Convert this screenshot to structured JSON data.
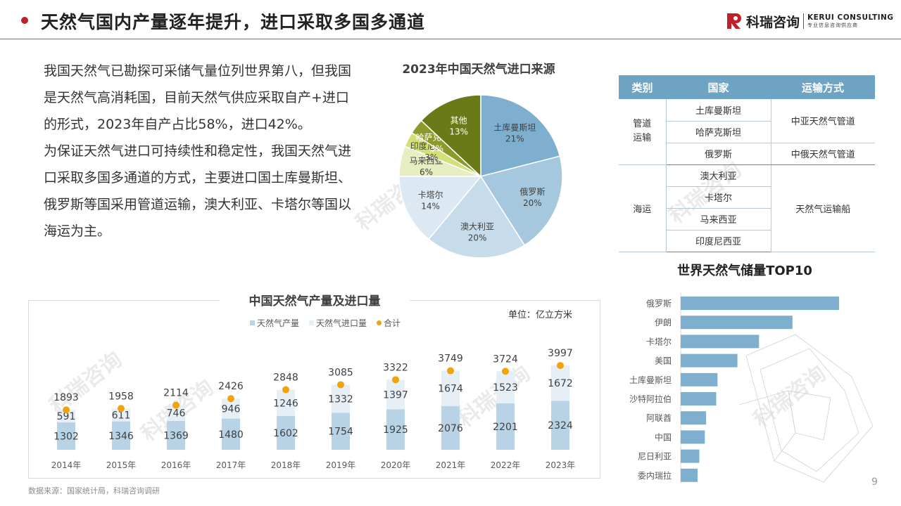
{
  "header": {
    "title": "天然气国内产量逐年提升，进口采取多国多通道",
    "logo_cn": "科瑞咨询",
    "logo_en": "KERUI CONSULTING",
    "logo_sub": "专业信息咨询供应商"
  },
  "paragraphs": [
    "我国天然气已勘探可采储气量位列世界第八，但我国是天然气高消耗国，目前天然气供应采取自产+进口的形式，2023年自产占比58%，进口42%。",
    "为保证天然气进口可持续性和稳定性，我国天然气进口采取多国多通道的方式，主要进口国土库曼斯坦、俄罗斯等国采用管道运输，澳大利亚、卡塔尔等国以海运为主。"
  ],
  "watermark": "科瑞咨询",
  "chart_data": [
    {
      "type": "pie",
      "title": "2023年中国天然气进口来源",
      "slices": [
        {
          "label": "土库曼斯坦",
          "value": 21,
          "display": "21%",
          "color": "#7eafcf"
        },
        {
          "label": "俄罗斯",
          "value": 20,
          "display": "20%",
          "color": "#a6c8de"
        },
        {
          "label": "澳大利亚",
          "value": 20,
          "display": "20%",
          "color": "#c7dcea"
        },
        {
          "label": "卡塔尔",
          "value": 14,
          "display": "14%",
          "color": "#dde9f2"
        },
        {
          "label": "马来西亚",
          "value": 6,
          "display": "6%",
          "color": "#e6eec2"
        },
        {
          "label": "印度尼西亚",
          "value": 3,
          "display": "3%",
          "color": "#d3e07a"
        },
        {
          "label": "哈萨克斯坦",
          "value": 3,
          "display": "3%",
          "color": "#8c9a2a"
        },
        {
          "label": "其他",
          "value": 13,
          "display": "13%",
          "color": "#6b7a18"
        }
      ]
    },
    {
      "type": "bar",
      "title": "中国天然气产量及进口量",
      "unit": "单位：亿立方米",
      "categories": [
        "2014年",
        "2015年",
        "2016年",
        "2017年",
        "2018年",
        "2019年",
        "2020年",
        "2021年",
        "2022年",
        "2023年"
      ],
      "series": [
        {
          "name": "天然气产量",
          "values": [
            1302,
            1346,
            1369,
            1480,
            1602,
            1754,
            1925,
            2076,
            2201,
            2324
          ],
          "color": "#b8d3e6"
        },
        {
          "name": "天然气进口量",
          "values": [
            591,
            611,
            746,
            946,
            1246,
            1332,
            1397,
            1674,
            1523,
            1672
          ],
          "color": "#e6eff6"
        },
        {
          "name": "合计",
          "values": [
            1893,
            1958,
            2114,
            2426,
            2848,
            3085,
            3322,
            3749,
            3724,
            3997
          ],
          "color": "#f0a30a"
        }
      ],
      "ylim": [
        0,
        4500
      ]
    },
    {
      "type": "bar",
      "title": "世界天然气储量TOP10",
      "categories": [
        "俄罗斯",
        "伊朗",
        "卡塔尔",
        "美国",
        "土库曼斯坦",
        "沙特阿拉伯",
        "阿联酋",
        "中国",
        "尼日利亚",
        "委内瑞拉"
      ],
      "values": [
        37.4,
        26.4,
        18.5,
        13.4,
        8.7,
        8.4,
        6.0,
        5.7,
        4.4,
        4.0
      ],
      "orientation": "horizontal",
      "color": "#7eafcf"
    }
  ],
  "import_table": {
    "headers": [
      "类别",
      "国家",
      "运输方式"
    ],
    "groups": [
      {
        "category": "管道运输",
        "rows": [
          {
            "country": "土库曼斯坦"
          },
          {
            "country": "哈萨克斯坦"
          },
          {
            "country": "俄罗斯"
          }
        ],
        "ways": [
          {
            "text": "中亚天然气管道",
            "span": 2
          },
          {
            "text": "中俄天然气管道",
            "span": 1
          }
        ]
      },
      {
        "category": "海运",
        "rows": [
          {
            "country": "澳大利亚"
          },
          {
            "country": "卡塔尔"
          },
          {
            "country": "马来西亚"
          },
          {
            "country": "印度尼西亚"
          }
        ],
        "ways": [
          {
            "text": "天然气运输船",
            "span": 4
          }
        ]
      }
    ]
  },
  "footer": {
    "source": "数据来源：国家统计局，科瑞咨询调研",
    "page": "9"
  }
}
